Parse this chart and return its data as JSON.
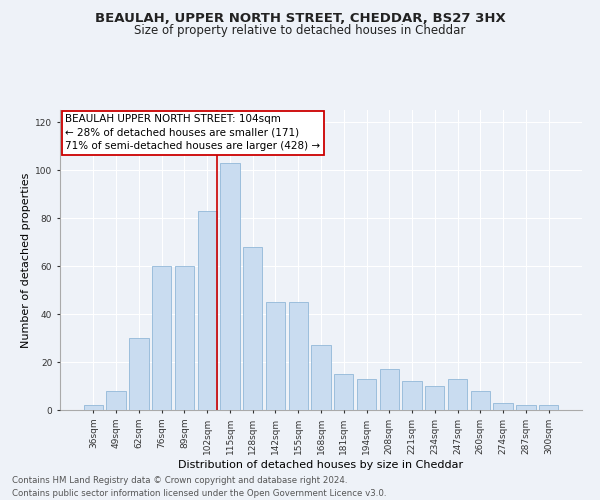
{
  "title1": "BEAULAH, UPPER NORTH STREET, CHEDDAR, BS27 3HX",
  "title2": "Size of property relative to detached houses in Cheddar",
  "xlabel": "Distribution of detached houses by size in Cheddar",
  "ylabel": "Number of detached properties",
  "footnote1": "Contains HM Land Registry data © Crown copyright and database right 2024.",
  "footnote2": "Contains public sector information licensed under the Open Government Licence v3.0.",
  "bar_color": "#c9dcf0",
  "bar_edge_color": "#92b8d8",
  "background_color": "#eef2f8",
  "grid_color": "#ffffff",
  "vline_color": "#cc0000",
  "annotation_box_color": "#cc0000",
  "annotation_lines": [
    "BEAULAH UPPER NORTH STREET: 104sqm",
    "← 28% of detached houses are smaller (171)",
    "71% of semi-detached houses are larger (428) →"
  ],
  "categories": [
    "36sqm",
    "49sqm",
    "62sqm",
    "76sqm",
    "89sqm",
    "102sqm",
    "115sqm",
    "128sqm",
    "142sqm",
    "155sqm",
    "168sqm",
    "181sqm",
    "194sqm",
    "208sqm",
    "221sqm",
    "234sqm",
    "247sqm",
    "260sqm",
    "274sqm",
    "287sqm",
    "300sqm"
  ],
  "values": [
    2,
    8,
    30,
    60,
    60,
    83,
    103,
    68,
    45,
    45,
    27,
    15,
    13,
    17,
    12,
    10,
    13,
    8,
    3,
    2,
    2
  ],
  "ylim": [
    0,
    125
  ],
  "yticks": [
    0,
    20,
    40,
    60,
    80,
    100,
    120
  ],
  "title_fontsize": 9.5,
  "subtitle_fontsize": 8.5,
  "axis_label_fontsize": 8,
  "tick_fontsize": 6.5,
  "annotation_fontsize": 7.5,
  "footnote_fontsize": 6.2
}
